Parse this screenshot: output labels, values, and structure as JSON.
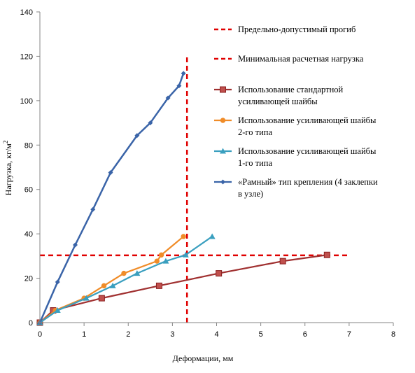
{
  "chart_data": {
    "type": "line",
    "title": "",
    "xlabel": "Деформации, мм",
    "ylabel_main": "Нагрузка, кг/м",
    "ylabel_sup": "2",
    "xlim": [
      0,
      8
    ],
    "ylim": [
      0,
      140
    ],
    "x_ticks": [
      "0",
      "1",
      "2",
      "3",
      "4",
      "5",
      "6",
      "7",
      "8"
    ],
    "y_ticks": [
      "0",
      "20",
      "40",
      "60",
      "80",
      "100",
      "120",
      "140"
    ],
    "grid": false,
    "legend_position": "right",
    "reference_lines": [
      {
        "name": "Предельно-допустимый прогиб",
        "orientation": "vertical",
        "x": 3.33,
        "y_range": [
          0,
          120
        ],
        "color": "#e00000",
        "style": "dashed"
      },
      {
        "name": "Минимальная расчетная нагрузка",
        "orientation": "horizontal",
        "y": 30.3,
        "x_range": [
          0,
          7.0
        ],
        "color": "#e00000",
        "style": "dashed"
      }
    ],
    "series": [
      {
        "name": "Использование стандартной усиливающей шайбы",
        "legend_lines": [
          "Использование стандартной",
          "усиливающей шайбы"
        ],
        "color": "#a03030",
        "marker": "square",
        "x": [
          0,
          0.3,
          1.4,
          2.7,
          4.05,
          5.5,
          6.5
        ],
        "y": [
          0,
          5.5,
          11,
          16.6,
          22.2,
          27.7,
          30.5
        ]
      },
      {
        "name": "Использование усиливающей шайбы 2-го типа",
        "legend_lines": [
          "Использование усиливающей шайбы",
          "2-го типа"
        ],
        "color": "#f08c28",
        "marker": "circle",
        "x": [
          0,
          0.35,
          1.0,
          1.45,
          1.9,
          2.65,
          2.75,
          3.25
        ],
        "y": [
          0,
          5.5,
          11,
          16.6,
          22.2,
          27.7,
          30.5,
          38.8
        ]
      },
      {
        "name": "Использование усиливающей шайбы 1-го типа",
        "legend_lines": [
          "Использование усиливающей шайбы",
          "1-го типа"
        ],
        "color": "#3a9fbf",
        "marker": "triangle",
        "x": [
          0,
          0.4,
          1.05,
          1.65,
          2.2,
          2.85,
          3.3,
          3.9
        ],
        "y": [
          0,
          5.5,
          11,
          16.6,
          22.2,
          27.7,
          30.5,
          38.8
        ]
      },
      {
        "name": "«Рамный» тип крепления (4 заклепки в узле)",
        "legend_lines": [
          "«Рамный» тип крепления (4 заклепки",
          "в узле)"
        ],
        "color": "#3a64a8",
        "marker": "diamond",
        "x": [
          0,
          0.4,
          0.8,
          1.2,
          1.6,
          2.2,
          2.5,
          2.9,
          3.15,
          3.25
        ],
        "y": [
          0,
          18.3,
          35,
          51,
          67.6,
          84.3,
          90,
          101.2,
          106.7,
          112.3
        ]
      }
    ]
  }
}
